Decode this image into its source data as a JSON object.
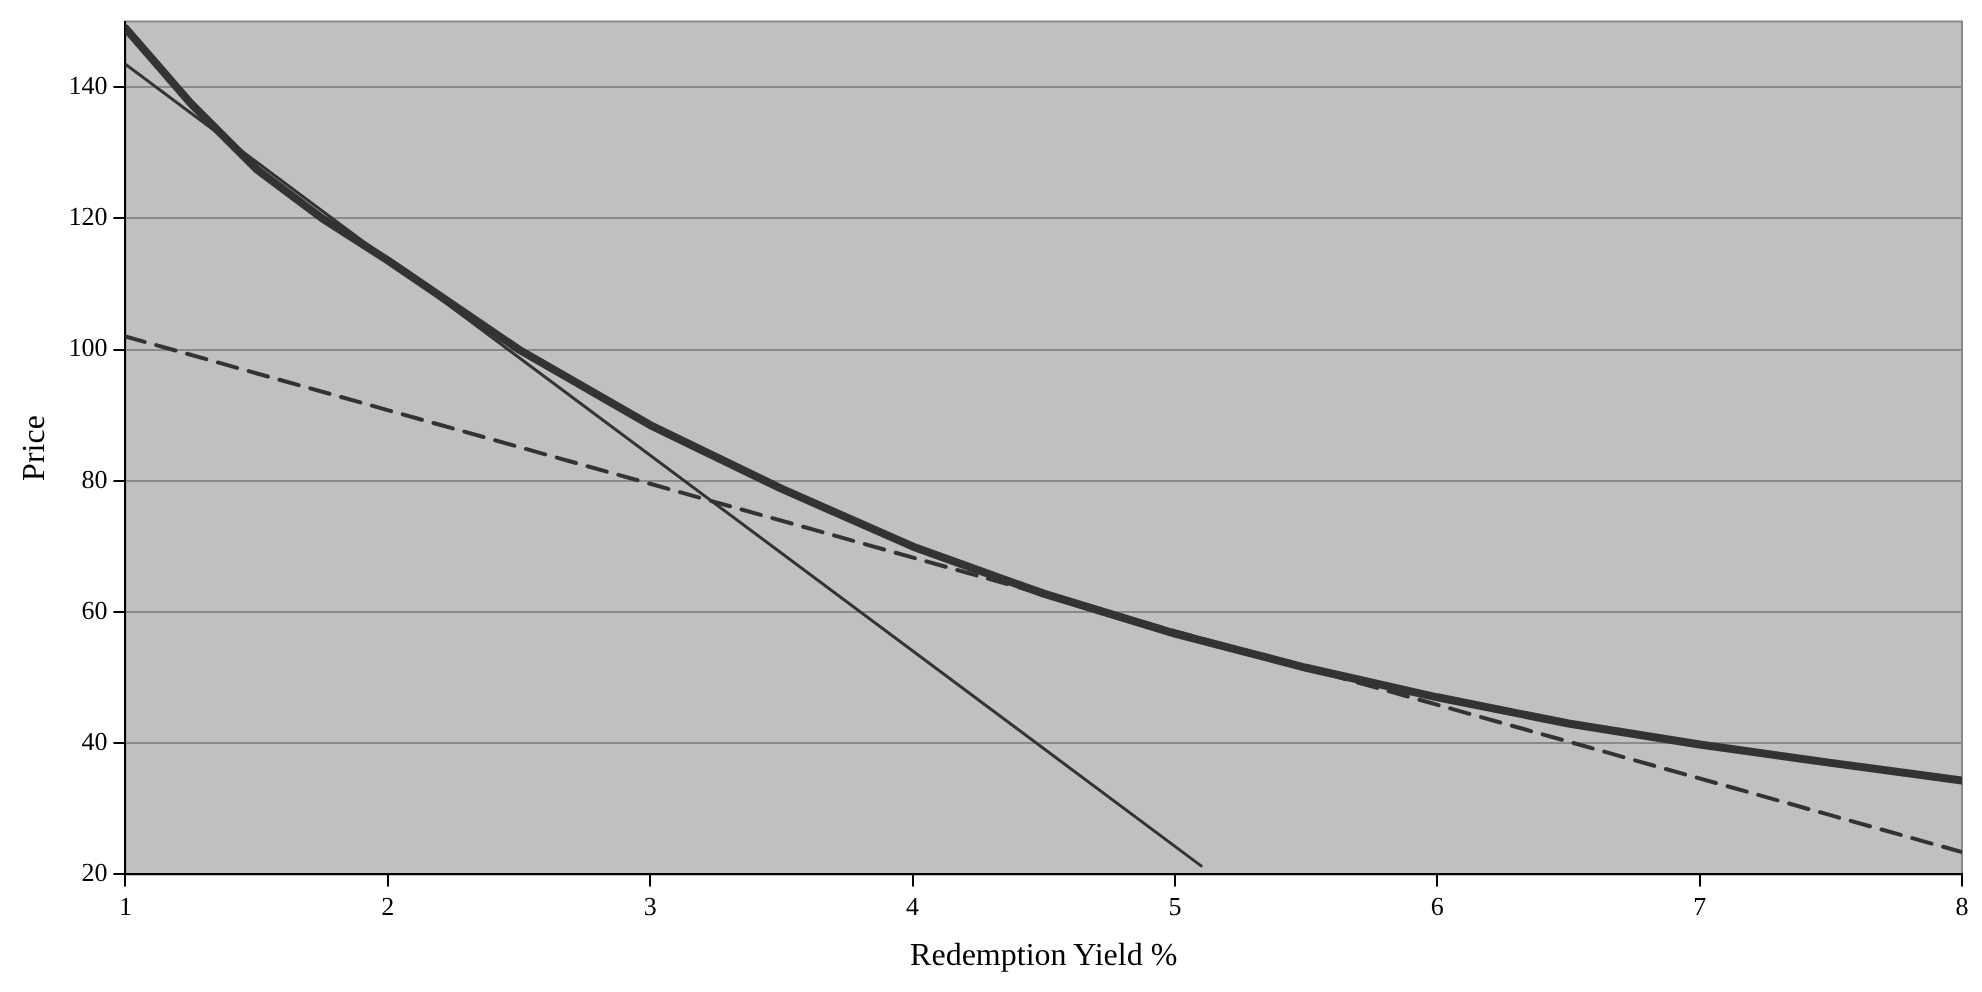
{
  "chart_data": {
    "type": "line",
    "xlabel": "Redemption Yield %",
    "ylabel": "Price",
    "xlim": [
      1,
      8
    ],
    "xticks": [
      1,
      2,
      3,
      4,
      5,
      6,
      7,
      8
    ],
    "ylim": [
      20,
      150
    ],
    "yticks": [
      20,
      40,
      60,
      80,
      100,
      120,
      140
    ],
    "grid": "y",
    "marker": "none",
    "series": [
      {
        "color": "#333333",
        "line_style": "solid",
        "x": [
          1,
          1.25,
          1.5,
          1.75,
          2,
          2.5,
          3,
          3.5,
          4,
          4.5,
          5,
          5.5,
          6,
          6.5,
          7,
          7.5,
          8
        ],
        "values": [
          149,
          137.5,
          127.5,
          120,
          113.6,
          100,
          88.5,
          78.8,
          70,
          62.8,
          56.7,
          51.5,
          47,
          43,
          39.8,
          37,
          34.3
        ]
      },
      {
        "color": "#333333",
        "line_style": "solid",
        "x": [
          1,
          5.1
        ],
        "values": [
          143.5,
          21.3
        ]
      },
      {
        "color": "#333333",
        "line_style": "dashed",
        "x": [
          1,
          8
        ],
        "values": [
          102,
          23.4
        ]
      }
    ]
  }
}
